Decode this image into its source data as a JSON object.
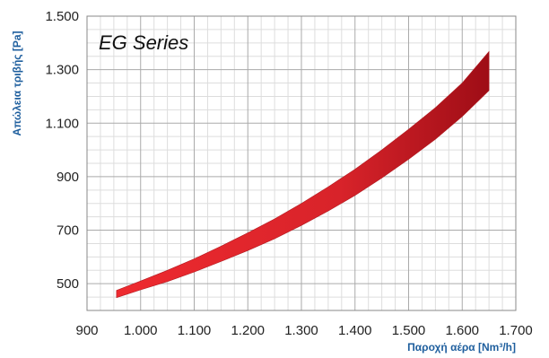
{
  "chart_data": {
    "type": "area",
    "title": "EG Series",
    "xlabel": "Παροχή αέρα [Nm³/h]",
    "ylabel": "Απώλεια τριβής [Pa]",
    "xlim": [
      900,
      1700
    ],
    "ylim": [
      400,
      1500
    ],
    "x_ticks": [
      "900",
      "1.000",
      "1.100",
      "1.200",
      "1.300",
      "1.400",
      "1.500",
      "1.600",
      "1.700"
    ],
    "y_ticks": [
      "500",
      "700",
      "900",
      "1.100",
      "1.300",
      "1.500"
    ],
    "grid": true,
    "series": [
      {
        "x": [
          955,
          1000,
          1050,
          1100,
          1150,
          1200,
          1250,
          1300,
          1350,
          1400,
          1450,
          1500,
          1550,
          1600,
          1650
        ],
        "upper": [
          475,
          510,
          550,
          593,
          640,
          690,
          742,
          800,
          862,
          928,
          1000,
          1077,
          1158,
          1250,
          1368
        ],
        "lower": [
          448,
          477,
          508,
          544,
          583,
          624,
          668,
          718,
          772,
          830,
          895,
          965,
          1040,
          1125,
          1222
        ]
      }
    ],
    "colors": {
      "band_start": "#ee2a2f",
      "band_mid": "#d8232a",
      "band_end": "#9e0d16",
      "axis_title": "#1f5f9e",
      "grid_major": "#aaaaaa",
      "grid_minor": "#dddddd"
    }
  }
}
